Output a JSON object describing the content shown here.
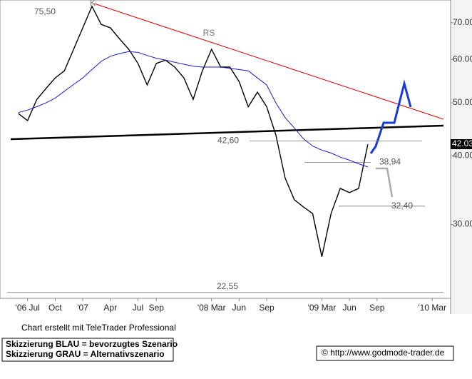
{
  "chart_data": {
    "type": "line",
    "x": [
      "2006-06",
      "2006-07",
      "2006-08",
      "2006-09",
      "2006-10",
      "2006-11",
      "2006-12",
      "2007-01",
      "2007-02",
      "2007-03",
      "2007-04",
      "2007-05",
      "2007-06",
      "2007-07",
      "2007-08",
      "2007-09",
      "2007-10",
      "2007-11",
      "2007-12",
      "2008-01",
      "2008-02",
      "2008-03",
      "2008-04",
      "2008-05",
      "2008-06",
      "2008-07",
      "2008-08",
      "2008-09",
      "2008-10",
      "2008-11",
      "2008-12",
      "2009-01",
      "2009-02",
      "2009-03",
      "2009-04",
      "2009-05",
      "2009-06",
      "2009-07",
      "2009-08"
    ],
    "series": [
      {
        "color": "#000000",
        "values": [
          47.8,
          46.4,
          50.7,
          53.1,
          55.5,
          57.2,
          62.6,
          68.5,
          75.0,
          69.5,
          68.5,
          65.4,
          62.6,
          59.0,
          53.9,
          59.0,
          59.8,
          58.1,
          55.5,
          50.7,
          57.2,
          62.6,
          58.1,
          58.1,
          54.7,
          49.2,
          52.3,
          49.2,
          43.7,
          36.5,
          33.3,
          32.3,
          31.4,
          26.2,
          31.4,
          34.9,
          34.3,
          34.9,
          42.0
        ]
      },
      {
        "color": "#1a1ad0",
        "values": [
          48.0,
          48.5,
          49.2,
          50.0,
          51.0,
          52.5,
          54.0,
          55.5,
          57.5,
          59.5,
          60.8,
          61.5,
          62.0,
          61.8,
          61.0,
          60.3,
          59.8,
          59.3,
          58.8,
          58.3,
          58.1,
          58.1,
          58.1,
          57.8,
          57.5,
          57.2,
          55.5,
          53.9,
          50.0,
          47.0,
          45.0,
          43.0,
          41.7,
          41.0,
          40.5,
          39.8,
          39.3,
          38.7,
          38.2
        ]
      }
    ],
    "log_scale": true,
    "ylim": [
      22,
      77
    ],
    "yticks": [
      {
        "value": 30,
        "label": "30.00"
      },
      {
        "value": 40,
        "label": "40.00"
      },
      {
        "value": 50,
        "label": "50.00"
      },
      {
        "value": 60,
        "label": "60.00"
      },
      {
        "value": 70,
        "label": "70.00"
      }
    ],
    "xlim": [
      "2006-04",
      "2010-05"
    ],
    "xticks": [
      {
        "value": "2006-07",
        "label": "'06 Jul"
      },
      {
        "value": "2006-10",
        "label": "Oct"
      },
      {
        "value": "2007-01",
        "label": "'07"
      },
      {
        "value": "2007-04",
        "label": "Apr"
      },
      {
        "value": "2007-07",
        "label": "Jul"
      },
      {
        "value": "2007-09",
        "label": "Sep"
      },
      {
        "value": "2008-03",
        "label": "'08 Mar"
      },
      {
        "value": "2008-06",
        "label": "Jun"
      },
      {
        "value": "2008-09",
        "label": "Sep"
      },
      {
        "value": "2009-03",
        "label": "'09 Mar"
      },
      {
        "value": "2009-06",
        "label": "Jun"
      },
      {
        "value": "2009-09",
        "label": "Sep"
      },
      {
        "value": "2010-03",
        "label": "'10 Mar"
      }
    ],
    "last_price": 42.03,
    "levels": [
      {
        "value": 75.5,
        "label": "75,50"
      },
      {
        "value": 42.6,
        "label": "42,60"
      },
      {
        "value": 38.94,
        "label": "38,94"
      },
      {
        "value": 32.4,
        "label": "32,40"
      },
      {
        "value": 22.55,
        "label": "22,55"
      }
    ],
    "annotations": [
      "K",
      "RS"
    ],
    "footer": {
      "credit": "Chart erstellt mit TeleTrader Professional",
      "legend_blue": "Skizzierung BLAU = bevorzugtes Szenario",
      "legend_gray": "Skizzierung GRAU = Alternativszenario",
      "source": "© http://www.godmode-trader.de"
    }
  }
}
